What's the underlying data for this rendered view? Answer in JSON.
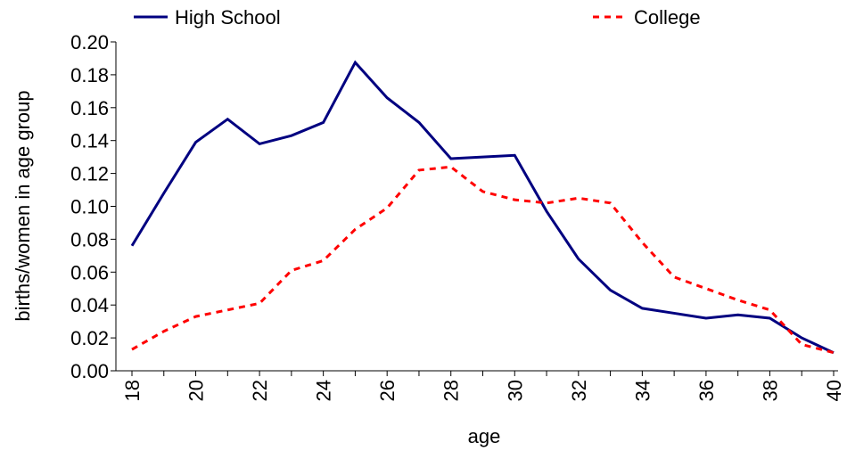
{
  "chart_data": {
    "type": "line",
    "x": [
      18,
      19,
      20,
      21,
      22,
      23,
      24,
      25,
      26,
      27,
      28,
      29,
      30,
      31,
      32,
      33,
      34,
      35,
      36,
      37,
      38,
      39,
      40
    ],
    "series": [
      {
        "name": "High School",
        "color": "#000080",
        "dash": false,
        "values": [
          0.076,
          0.108,
          0.139,
          0.153,
          0.138,
          0.143,
          0.151,
          0.1875,
          0.166,
          0.151,
          0.129,
          0.13,
          0.131,
          0.097,
          0.068,
          0.049,
          0.038,
          0.035,
          0.032,
          0.034,
          0.032,
          0.02,
          0.011
        ]
      },
      {
        "name": "College",
        "color": "#ff0000",
        "dash": true,
        "values": [
          0.013,
          0.024,
          0.033,
          0.037,
          0.041,
          0.061,
          0.067,
          0.086,
          0.099,
          0.122,
          0.124,
          0.109,
          0.104,
          0.102,
          0.105,
          0.102,
          0.078,
          0.057,
          0.05,
          0.043,
          0.037,
          0.016,
          0.011
        ]
      }
    ],
    "xlabel": "age",
    "ylabel": "births/women in age group",
    "xlim": [
      18,
      40
    ],
    "xticks": [
      18,
      20,
      22,
      24,
      26,
      28,
      30,
      32,
      34,
      36,
      38,
      40
    ],
    "ylim": [
      0,
      0.2
    ],
    "yticks": [
      {
        "value": 0,
        "label": "0.00"
      },
      {
        "value": 0.02,
        "label": "0.02"
      },
      {
        "value": 0.04,
        "label": "0.04"
      },
      {
        "value": 0.06,
        "label": "0.06"
      },
      {
        "value": 0.08,
        "label": "0.08"
      },
      {
        "value": 0.1,
        "label": "0.10"
      },
      {
        "value": 0.12,
        "label": "0.12"
      },
      {
        "value": 0.14,
        "label": "0.14"
      },
      {
        "value": 0.16,
        "label": "0.16"
      },
      {
        "value": 0.18,
        "label": "0.18"
      },
      {
        "value": 0.2,
        "label": "0.20"
      }
    ],
    "grid": false,
    "legend": "top"
  }
}
